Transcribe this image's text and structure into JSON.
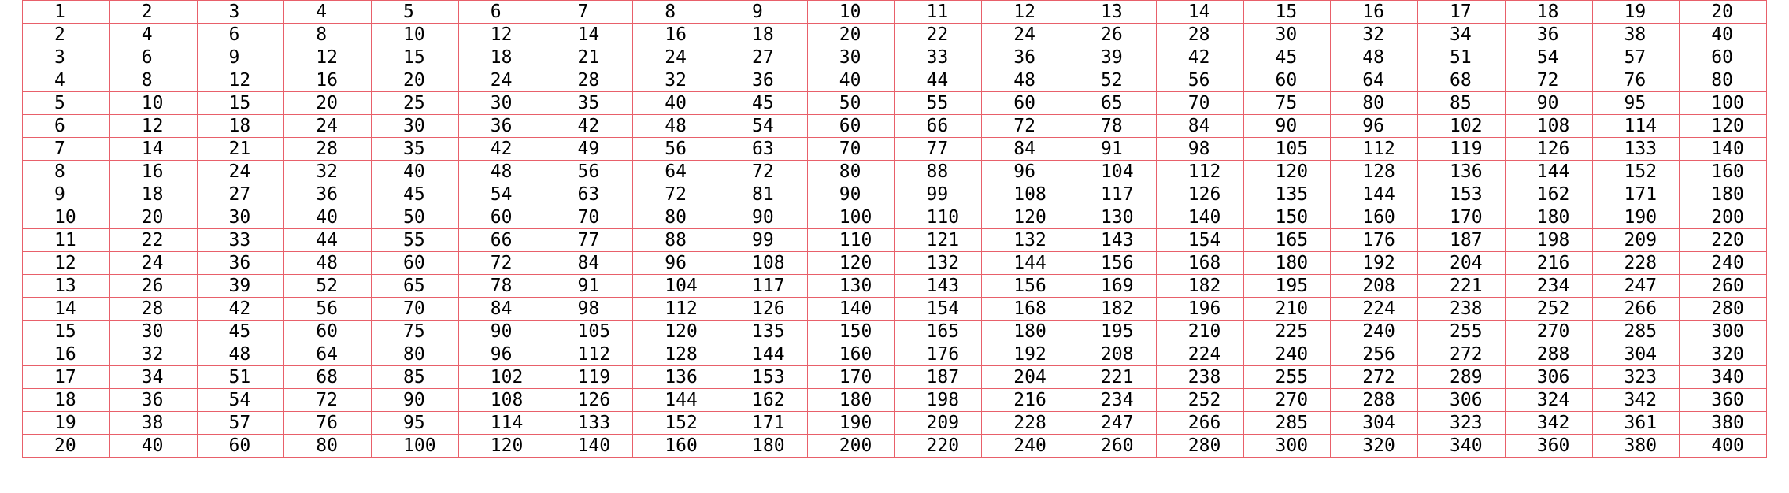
{
  "table": {
    "rows": [
      [
        1,
        2,
        3,
        4,
        5,
        6,
        7,
        8,
        9,
        10,
        11,
        12,
        13,
        14,
        15,
        16,
        17,
        18,
        19,
        20
      ],
      [
        2,
        4,
        6,
        8,
        10,
        12,
        14,
        16,
        18,
        20,
        22,
        24,
        26,
        28,
        30,
        32,
        34,
        36,
        38,
        40
      ],
      [
        3,
        6,
        9,
        12,
        15,
        18,
        21,
        24,
        27,
        30,
        33,
        36,
        39,
        42,
        45,
        48,
        51,
        54,
        57,
        60
      ],
      [
        4,
        8,
        12,
        16,
        20,
        24,
        28,
        32,
        36,
        40,
        44,
        48,
        52,
        56,
        60,
        64,
        68,
        72,
        76,
        80
      ],
      [
        5,
        10,
        15,
        20,
        25,
        30,
        35,
        40,
        45,
        50,
        55,
        60,
        65,
        70,
        75,
        80,
        85,
        90,
        95,
        100
      ],
      [
        6,
        12,
        18,
        24,
        30,
        36,
        42,
        48,
        54,
        60,
        66,
        72,
        78,
        84,
        90,
        96,
        102,
        108,
        114,
        120
      ],
      [
        7,
        14,
        21,
        28,
        35,
        42,
        49,
        56,
        63,
        70,
        77,
        84,
        91,
        98,
        105,
        112,
        119,
        126,
        133,
        140
      ],
      [
        8,
        16,
        24,
        32,
        40,
        48,
        56,
        64,
        72,
        80,
        88,
        96,
        104,
        112,
        120,
        128,
        136,
        144,
        152,
        160
      ],
      [
        9,
        18,
        27,
        36,
        45,
        54,
        63,
        72,
        81,
        90,
        99,
        108,
        117,
        126,
        135,
        144,
        153,
        162,
        171,
        180
      ],
      [
        10,
        20,
        30,
        40,
        50,
        60,
        70,
        80,
        90,
        100,
        110,
        120,
        130,
        140,
        150,
        160,
        170,
        180,
        190,
        200
      ],
      [
        11,
        22,
        33,
        44,
        55,
        66,
        77,
        88,
        99,
        110,
        121,
        132,
        143,
        154,
        165,
        176,
        187,
        198,
        209,
        220
      ],
      [
        12,
        24,
        36,
        48,
        60,
        72,
        84,
        96,
        108,
        120,
        132,
        144,
        156,
        168,
        180,
        192,
        204,
        216,
        228,
        240
      ],
      [
        13,
        26,
        39,
        52,
        65,
        78,
        91,
        104,
        117,
        130,
        143,
        156,
        169,
        182,
        195,
        208,
        221,
        234,
        247,
        260
      ],
      [
        14,
        28,
        42,
        56,
        70,
        84,
        98,
        112,
        126,
        140,
        154,
        168,
        182,
        196,
        210,
        224,
        238,
        252,
        266,
        280
      ],
      [
        15,
        30,
        45,
        60,
        75,
        90,
        105,
        120,
        135,
        150,
        165,
        180,
        195,
        210,
        225,
        240,
        255,
        270,
        285,
        300
      ],
      [
        16,
        32,
        48,
        64,
        80,
        96,
        112,
        128,
        144,
        160,
        176,
        192,
        208,
        224,
        240,
        256,
        272,
        288,
        304,
        320
      ],
      [
        17,
        34,
        51,
        68,
        85,
        102,
        119,
        136,
        153,
        170,
        187,
        204,
        221,
        238,
        255,
        272,
        289,
        306,
        323,
        340
      ],
      [
        18,
        36,
        54,
        72,
        90,
        108,
        126,
        144,
        162,
        180,
        198,
        216,
        234,
        252,
        270,
        288,
        306,
        324,
        342,
        360
      ],
      [
        19,
        38,
        57,
        76,
        95,
        114,
        133,
        152,
        171,
        190,
        209,
        228,
        247,
        266,
        285,
        304,
        323,
        342,
        361,
        380
      ],
      [
        20,
        40,
        60,
        80,
        100,
        120,
        140,
        160,
        180,
        200,
        220,
        240,
        260,
        280,
        300,
        320,
        340,
        360,
        380,
        400
      ]
    ]
  }
}
